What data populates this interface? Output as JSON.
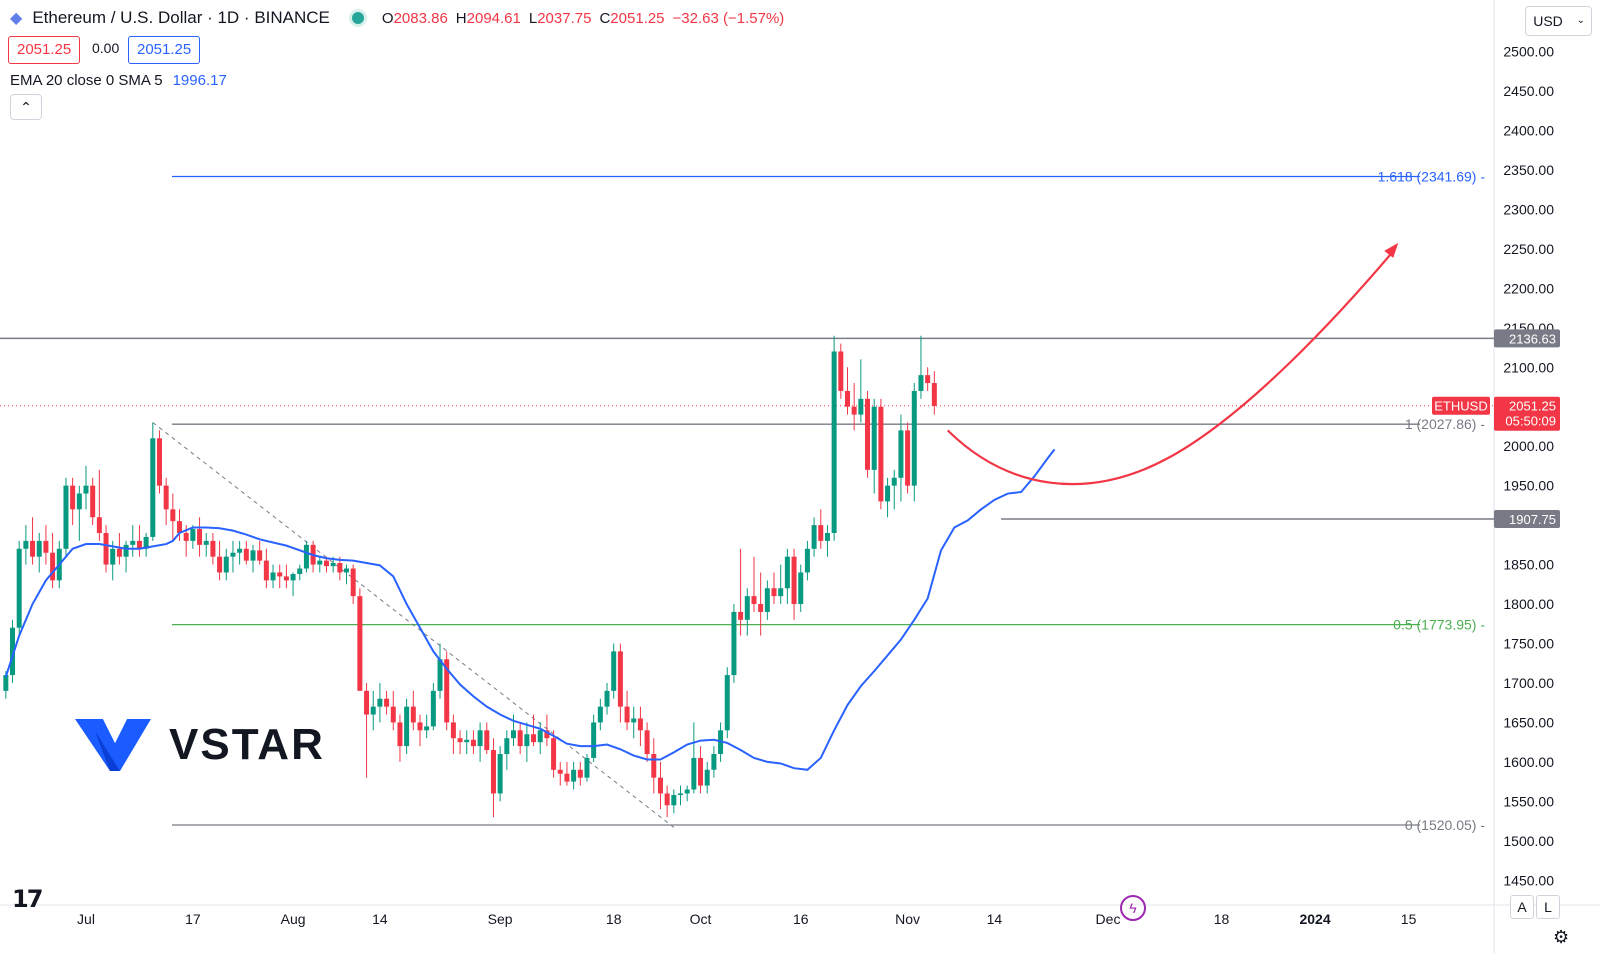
{
  "header": {
    "symbol": "Ethereum / U.S. Dollar · 1D · BINANCE",
    "open_label": "O",
    "open": "2083.86",
    "high_label": "H",
    "high": "2094.61",
    "low_label": "L",
    "low": "2037.75",
    "close_label": "C",
    "close": "2051.25",
    "change": "−32.63 (−1.57%)",
    "bid": "2051.25",
    "spread": "0.00",
    "ask": "2051.25"
  },
  "indicator": {
    "label": "EMA 20 close 0 SMA 5",
    "value": "1996.17"
  },
  "currency": {
    "selected": "USD"
  },
  "logo": {
    "brand": "VSTAR"
  },
  "footer": {
    "scale_auto": "A",
    "scale_log": "L"
  },
  "colors": {
    "up": "#089981",
    "down": "#f23645",
    "ema": "#2962ff",
    "fib_1618": "#2962ff",
    "fib_05": "#4caf50",
    "arrow": "#f23645"
  },
  "chart_data": {
    "type": "candlestick",
    "title": "Ethereum / U.S. Dollar · 1D · BINANCE",
    "ylim": [
      1425,
      2540
    ],
    "y_ticks": [
      2500,
      2450,
      2400,
      2350,
      2300,
      2250,
      2200,
      2150,
      2100,
      2000,
      1950,
      1850,
      1800,
      1750,
      1700,
      1650,
      1600,
      1550,
      1500,
      1450
    ],
    "y_tick_labels": [
      "2500.00",
      "2450.00",
      "2400.00",
      "2350.00",
      "2300.00",
      "2250.00",
      "2200.00",
      "2150.00",
      "2100.00",
      "2000.00",
      "1950.00",
      "1850.00",
      "1800.00",
      "1750.00",
      "1700.00",
      "1650.00",
      "1600.00",
      "1550.00",
      "1500.00",
      "1450.00"
    ],
    "x_ticks": [
      {
        "label": "Jul",
        "day": 0
      },
      {
        "label": "17",
        "day": 16
      },
      {
        "label": "Aug",
        "day": 31
      },
      {
        "label": "14",
        "day": 44
      },
      {
        "label": "Sep",
        "day": 62
      },
      {
        "label": "18",
        "day": 79
      },
      {
        "label": "Oct",
        "day": 92
      },
      {
        "label": "16",
        "day": 107
      },
      {
        "label": "Nov",
        "day": 123
      },
      {
        "label": "14",
        "day": 136
      },
      {
        "label": "Dec",
        "day": 153
      },
      {
        "label": "18",
        "day": 170
      },
      {
        "label": "2024",
        "day": 184
      },
      {
        "label": "15",
        "day": 198
      }
    ],
    "x_domain_days": [
      -12,
      206
    ],
    "levels": [
      {
        "label": "2136.63",
        "value": 2136.63,
        "style": "gray"
      },
      {
        "label": "1907.75",
        "value": 1907.75,
        "style": "gray"
      }
    ],
    "fibonacci": [
      {
        "label": "1.618 (2341.69)",
        "value": 2341.69,
        "color": "#2962ff"
      },
      {
        "label": "1 (2027.86)",
        "value": 2027.86,
        "color": "#787b86"
      },
      {
        "label": "0.5 (1773.95)",
        "value": 1773.95,
        "color": "#4caf50"
      },
      {
        "label": "0 (1520.05)",
        "value": 1520.05,
        "color": "#787b86"
      }
    ],
    "current_price": {
      "symbol": "ETHUSD",
      "value": 2051.25,
      "label": "2051.25",
      "countdown": "05:50:09"
    },
    "ema20": [
      [
        -12,
        1708
      ],
      [
        -10,
        1760
      ],
      [
        -8,
        1800
      ],
      [
        -6,
        1830
      ],
      [
        -4,
        1850
      ],
      [
        -2,
        1870
      ],
      [
        0,
        1876
      ],
      [
        2,
        1876
      ],
      [
        4,
        1873
      ],
      [
        6,
        1870
      ],
      [
        8,
        1870
      ],
      [
        10,
        1873
      ],
      [
        12,
        1876
      ],
      [
        13,
        1880
      ],
      [
        14,
        1890
      ],
      [
        16,
        1897
      ],
      [
        18,
        1897
      ],
      [
        20,
        1896
      ],
      [
        22,
        1893
      ],
      [
        24,
        1888
      ],
      [
        26,
        1882
      ],
      [
        28,
        1878
      ],
      [
        30,
        1874
      ],
      [
        32,
        1868
      ],
      [
        34,
        1862
      ],
      [
        36,
        1858
      ],
      [
        38,
        1856
      ],
      [
        40,
        1855
      ],
      [
        42,
        1852
      ],
      [
        44,
        1849
      ],
      [
        46,
        1835
      ],
      [
        48,
        1800
      ],
      [
        50,
        1770
      ],
      [
        52,
        1740
      ],
      [
        54,
        1718
      ],
      [
        56,
        1698
      ],
      [
        58,
        1683
      ],
      [
        60,
        1670
      ],
      [
        62,
        1660
      ],
      [
        64,
        1652
      ],
      [
        66,
        1647
      ],
      [
        68,
        1642
      ],
      [
        70,
        1633
      ],
      [
        72,
        1623
      ],
      [
        74,
        1620
      ],
      [
        76,
        1620
      ],
      [
        78,
        1622
      ],
      [
        80,
        1616
      ],
      [
        82,
        1608
      ],
      [
        84,
        1603
      ],
      [
        86,
        1603
      ],
      [
        88,
        1612
      ],
      [
        90,
        1622
      ],
      [
        92,
        1627
      ],
      [
        94,
        1628
      ],
      [
        96,
        1624
      ],
      [
        98,
        1615
      ],
      [
        100,
        1605
      ],
      [
        102,
        1600
      ],
      [
        104,
        1598
      ],
      [
        106,
        1592
      ],
      [
        108,
        1590
      ],
      [
        110,
        1605
      ],
      [
        112,
        1640
      ],
      [
        114,
        1672
      ],
      [
        116,
        1696
      ],
      [
        118,
        1715
      ],
      [
        120,
        1735
      ],
      [
        122,
        1755
      ],
      [
        124,
        1780
      ],
      [
        126,
        1807
      ],
      [
        128,
        1868
      ],
      [
        130,
        1897
      ],
      [
        132,
        1906
      ],
      [
        134,
        1920
      ],
      [
        136,
        1932
      ],
      [
        138,
        1940
      ],
      [
        140,
        1942
      ],
      [
        142,
        1962
      ],
      [
        144,
        1985
      ],
      [
        145,
        1996
      ]
    ],
    "candles": [
      [
        -12,
        1690,
        1715,
        1680,
        1710
      ],
      [
        -11,
        1710,
        1780,
        1700,
        1770
      ],
      [
        -10,
        1770,
        1880,
        1760,
        1870
      ],
      [
        -9,
        1870,
        1900,
        1850,
        1880
      ],
      [
        -8,
        1880,
        1910,
        1850,
        1860
      ],
      [
        -7,
        1860,
        1890,
        1840,
        1880
      ],
      [
        -6,
        1880,
        1900,
        1850,
        1865
      ],
      [
        -5,
        1865,
        1890,
        1820,
        1830
      ],
      [
        -4,
        1830,
        1880,
        1820,
        1870
      ],
      [
        -3,
        1870,
        1960,
        1860,
        1950
      ],
      [
        -2,
        1950,
        1960,
        1900,
        1920
      ],
      [
        -1,
        1920,
        1950,
        1880,
        1940
      ],
      [
        0,
        1940,
        1975,
        1920,
        1950
      ],
      [
        1,
        1950,
        1960,
        1900,
        1910
      ],
      [
        2,
        1910,
        1970,
        1880,
        1890
      ],
      [
        3,
        1890,
        1900,
        1840,
        1850
      ],
      [
        4,
        1850,
        1880,
        1830,
        1870
      ],
      [
        5,
        1870,
        1890,
        1850,
        1860
      ],
      [
        6,
        1860,
        1880,
        1840,
        1875
      ],
      [
        7,
        1875,
        1900,
        1860,
        1880
      ],
      [
        8,
        1880,
        1900,
        1860,
        1870
      ],
      [
        9,
        1870,
        1890,
        1860,
        1885
      ],
      [
        10,
        1885,
        2030,
        1880,
        2010
      ],
      [
        11,
        2010,
        2020,
        1940,
        1950
      ],
      [
        12,
        1950,
        1960,
        1900,
        1920
      ],
      [
        13,
        1920,
        1940,
        1880,
        1905
      ],
      [
        14,
        1905,
        1920,
        1880,
        1890
      ],
      [
        15,
        1890,
        1900,
        1860,
        1880
      ],
      [
        16,
        1880,
        1900,
        1870,
        1895
      ],
      [
        17,
        1895,
        1910,
        1860,
        1875
      ],
      [
        18,
        1875,
        1890,
        1860,
        1880
      ],
      [
        19,
        1880,
        1890,
        1850,
        1860
      ],
      [
        20,
        1860,
        1880,
        1830,
        1840
      ],
      [
        21,
        1840,
        1870,
        1830,
        1860
      ],
      [
        22,
        1860,
        1880,
        1840,
        1865
      ],
      [
        23,
        1865,
        1880,
        1850,
        1870
      ],
      [
        24,
        1870,
        1880,
        1850,
        1855
      ],
      [
        25,
        1855,
        1875,
        1840,
        1868
      ],
      [
        26,
        1868,
        1880,
        1850,
        1855
      ],
      [
        27,
        1855,
        1870,
        1820,
        1830
      ],
      [
        28,
        1830,
        1850,
        1820,
        1840
      ],
      [
        29,
        1840,
        1850,
        1820,
        1835
      ],
      [
        30,
        1835,
        1850,
        1820,
        1830
      ],
      [
        31,
        1830,
        1840,
        1810,
        1838
      ],
      [
        32,
        1838,
        1850,
        1830,
        1845
      ],
      [
        33,
        1845,
        1880,
        1840,
        1875
      ],
      [
        34,
        1875,
        1880,
        1840,
        1850
      ],
      [
        35,
        1850,
        1860,
        1840,
        1855
      ],
      [
        36,
        1855,
        1860,
        1840,
        1848
      ],
      [
        37,
        1848,
        1860,
        1840,
        1852
      ],
      [
        38,
        1852,
        1860,
        1830,
        1840
      ],
      [
        39,
        1840,
        1850,
        1825,
        1845
      ],
      [
        40,
        1845,
        1850,
        1800,
        1810
      ],
      [
        41,
        1810,
        1820,
        1700,
        1690
      ],
      [
        42,
        1690,
        1700,
        1580,
        1660
      ],
      [
        43,
        1660,
        1690,
        1640,
        1670
      ],
      [
        44,
        1670,
        1700,
        1650,
        1680
      ],
      [
        45,
        1680,
        1690,
        1660,
        1670
      ],
      [
        46,
        1670,
        1690,
        1640,
        1650
      ],
      [
        47,
        1650,
        1660,
        1600,
        1620
      ],
      [
        48,
        1620,
        1680,
        1610,
        1670
      ],
      [
        49,
        1670,
        1690,
        1640,
        1650
      ],
      [
        50,
        1650,
        1660,
        1620,
        1640
      ],
      [
        51,
        1640,
        1660,
        1630,
        1645
      ],
      [
        52,
        1645,
        1700,
        1640,
        1690
      ],
      [
        53,
        1690,
        1750,
        1680,
        1730
      ],
      [
        54,
        1730,
        1740,
        1640,
        1650
      ],
      [
        55,
        1650,
        1660,
        1610,
        1630
      ],
      [
        56,
        1630,
        1640,
        1610,
        1625
      ],
      [
        57,
        1625,
        1640,
        1610,
        1628
      ],
      [
        58,
        1628,
        1640,
        1610,
        1620
      ],
      [
        59,
        1620,
        1650,
        1600,
        1640
      ],
      [
        60,
        1640,
        1650,
        1610,
        1615
      ],
      [
        61,
        1615,
        1630,
        1530,
        1560
      ],
      [
        62,
        1560,
        1620,
        1550,
        1610
      ],
      [
        63,
        1610,
        1640,
        1590,
        1630
      ],
      [
        64,
        1630,
        1660,
        1620,
        1640
      ],
      [
        65,
        1640,
        1650,
        1610,
        1620
      ],
      [
        66,
        1620,
        1650,
        1600,
        1635
      ],
      [
        67,
        1635,
        1660,
        1620,
        1625
      ],
      [
        68,
        1625,
        1650,
        1610,
        1640
      ],
      [
        69,
        1640,
        1660,
        1620,
        1630
      ],
      [
        70,
        1630,
        1640,
        1580,
        1590
      ],
      [
        71,
        1590,
        1600,
        1570,
        1585
      ],
      [
        72,
        1585,
        1600,
        1570,
        1575
      ],
      [
        73,
        1575,
        1600,
        1565,
        1590
      ],
      [
        74,
        1590,
        1600,
        1570,
        1580
      ],
      [
        75,
        1580,
        1610,
        1575,
        1605
      ],
      [
        76,
        1605,
        1660,
        1600,
        1650
      ],
      [
        77,
        1650,
        1680,
        1640,
        1670
      ],
      [
        78,
        1670,
        1700,
        1660,
        1690
      ],
      [
        79,
        1690,
        1750,
        1680,
        1740
      ],
      [
        80,
        1740,
        1750,
        1650,
        1670
      ],
      [
        81,
        1670,
        1690,
        1640,
        1650
      ],
      [
        82,
        1650,
        1670,
        1630,
        1655
      ],
      [
        83,
        1655,
        1670,
        1620,
        1640
      ],
      [
        84,
        1640,
        1650,
        1600,
        1610
      ],
      [
        85,
        1610,
        1630,
        1560,
        1580
      ],
      [
        86,
        1580,
        1600,
        1540,
        1560
      ],
      [
        87,
        1560,
        1570,
        1530,
        1545
      ],
      [
        88,
        1545,
        1565,
        1535,
        1558
      ],
      [
        89,
        1558,
        1570,
        1545,
        1560
      ],
      [
        90,
        1560,
        1570,
        1550,
        1565
      ],
      [
        91,
        1565,
        1650,
        1560,
        1605
      ],
      [
        92,
        1605,
        1620,
        1560,
        1570
      ],
      [
        93,
        1570,
        1600,
        1560,
        1590
      ],
      [
        94,
        1590,
        1620,
        1580,
        1610
      ],
      [
        95,
        1610,
        1650,
        1600,
        1640
      ],
      [
        96,
        1640,
        1720,
        1630,
        1710
      ],
      [
        97,
        1710,
        1800,
        1700,
        1790
      ],
      [
        98,
        1790,
        1870,
        1760,
        1780
      ],
      [
        99,
        1780,
        1820,
        1760,
        1810
      ],
      [
        100,
        1810,
        1860,
        1790,
        1800
      ],
      [
        101,
        1800,
        1840,
        1760,
        1790
      ],
      [
        102,
        1790,
        1830,
        1780,
        1820
      ],
      [
        103,
        1820,
        1840,
        1800,
        1810
      ],
      [
        104,
        1810,
        1850,
        1800,
        1820
      ],
      [
        105,
        1820,
        1870,
        1800,
        1860
      ],
      [
        106,
        1860,
        1870,
        1780,
        1800
      ],
      [
        107,
        1800,
        1850,
        1790,
        1840
      ],
      [
        108,
        1840,
        1880,
        1830,
        1870
      ],
      [
        109,
        1870,
        1910,
        1860,
        1900
      ],
      [
        110,
        1900,
        1920,
        1870,
        1880
      ],
      [
        111,
        1880,
        1900,
        1860,
        1890
      ],
      [
        112,
        1890,
        2140,
        1880,
        2120
      ],
      [
        113,
        2120,
        2130,
        2060,
        2070
      ],
      [
        114,
        2070,
        2100,
        2040,
        2050
      ],
      [
        115,
        2050,
        2080,
        2020,
        2040
      ],
      [
        116,
        2040,
        2110,
        2030,
        2060
      ],
      [
        117,
        2060,
        2070,
        1960,
        1970
      ],
      [
        118,
        1970,
        2060,
        1940,
        2050
      ],
      [
        119,
        2050,
        2060,
        1920,
        1930
      ],
      [
        120,
        1930,
        1960,
        1910,
        1950
      ],
      [
        121,
        1950,
        1970,
        1920,
        1960
      ],
      [
        122,
        1960,
        2040,
        1930,
        2020
      ],
      [
        123,
        2020,
        2030,
        1940,
        1950
      ],
      [
        124,
        1950,
        2080,
        1930,
        2070
      ],
      [
        125,
        2070,
        2140,
        2060,
        2090
      ],
      [
        126,
        2090,
        2100,
        2070,
        2080
      ],
      [
        127,
        2080,
        2095,
        2040,
        2051
      ]
    ]
  }
}
